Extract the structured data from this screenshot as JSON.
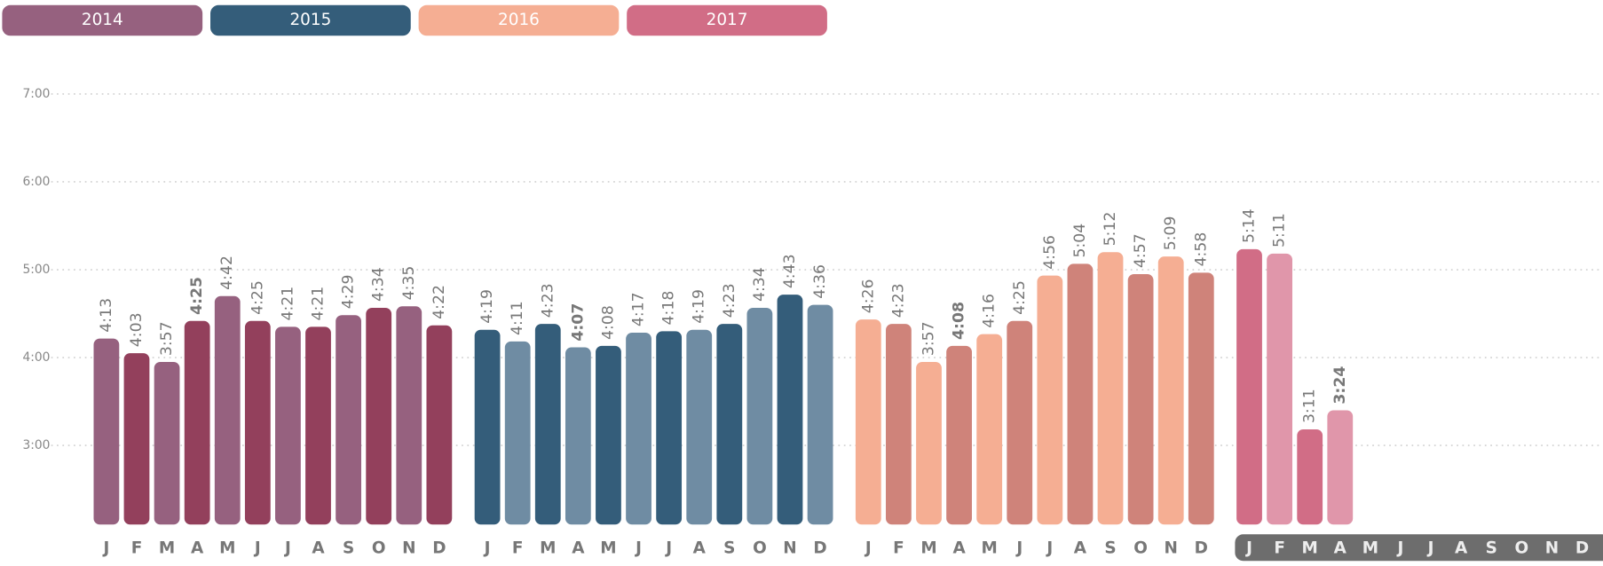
{
  "chart_data": {
    "type": "bar",
    "categories": [
      "J",
      "F",
      "M",
      "A",
      "M",
      "J",
      "J",
      "A",
      "S",
      "O",
      "N",
      "D"
    ],
    "ylim": [
      126,
      420
    ],
    "yticks": [
      {
        "value": 180,
        "label": "3:00"
      },
      {
        "value": 240,
        "label": "4:00"
      },
      {
        "value": 300,
        "label": "5:00"
      },
      {
        "value": 360,
        "label": "6:00"
      },
      {
        "value": 420,
        "label": "7:00"
      }
    ],
    "grid": true,
    "series": [
      {
        "name": "2014",
        "color": "#96617f",
        "colors": [
          "#96617f",
          "#93405c",
          "#96617f",
          "#93405c",
          "#96617f",
          "#93405c",
          "#96617f",
          "#93405c",
          "#96617f",
          "#93405c",
          "#96617f",
          "#93405c"
        ],
        "values": [
          253,
          243,
          237,
          265,
          282,
          265,
          261,
          261,
          269,
          274,
          275,
          262
        ],
        "value_labels": [
          "4:13",
          "4:03",
          "3:57",
          "4:25",
          "4:42",
          "4:25",
          "4:21",
          "4:21",
          "4:29",
          "4:34",
          "4:35",
          "4:22"
        ],
        "bold_index": 3
      },
      {
        "name": "2015",
        "color": "#345d7a",
        "colors": [
          "#345d7a",
          "#6f8ca3",
          "#345d7a",
          "#6f8ca3",
          "#345d7a",
          "#6f8ca3",
          "#345d7a",
          "#6f8ca3",
          "#345d7a",
          "#6f8ca3",
          "#345d7a",
          "#6f8ca3"
        ],
        "values": [
          259,
          251,
          263,
          247,
          248,
          257,
          258,
          259,
          263,
          274,
          283,
          276
        ],
        "value_labels": [
          "4:19",
          "4:11",
          "4:23",
          "4:07",
          "4:08",
          "4:17",
          "4:18",
          "4:19",
          "4:23",
          "4:34",
          "4:43",
          "4:36"
        ],
        "bold_index": 3
      },
      {
        "name": "2016",
        "color": "#f5ae93",
        "colors": [
          "#f5ae93",
          "#cf837a",
          "#f5ae93",
          "#cf837a",
          "#f5ae93",
          "#cf837a",
          "#f5ae93",
          "#cf837a",
          "#f5ae93",
          "#cf837a",
          "#f5ae93",
          "#cf837a"
        ],
        "values": [
          266,
          263,
          237,
          248,
          256,
          265,
          296,
          304,
          312,
          297,
          309,
          298
        ],
        "value_labels": [
          "4:26",
          "4:23",
          "3:57",
          "4:08",
          "4:16",
          "4:25",
          "4:56",
          "5:04",
          "5:12",
          "4:57",
          "5:09",
          "4:58"
        ],
        "bold_index": 3
      },
      {
        "name": "2017",
        "color": "#d16d86",
        "colors": [
          "#d16d86",
          "#e096aa",
          "#d16d86",
          "#e096aa",
          "#d16d86",
          "#e096aa",
          "#d16d86",
          "#e096aa",
          "#d16d86",
          "#e096aa",
          "#d16d86",
          "#e096aa"
        ],
        "values": [
          314,
          311,
          191,
          204,
          null,
          null,
          null,
          null,
          null,
          null,
          null,
          null
        ],
        "value_labels": [
          "5:14",
          "5:11",
          "3:11",
          "3:24",
          null,
          null,
          null,
          null,
          null,
          null,
          null,
          null
        ],
        "bold_index": 3,
        "highlight": true
      }
    ]
  }
}
